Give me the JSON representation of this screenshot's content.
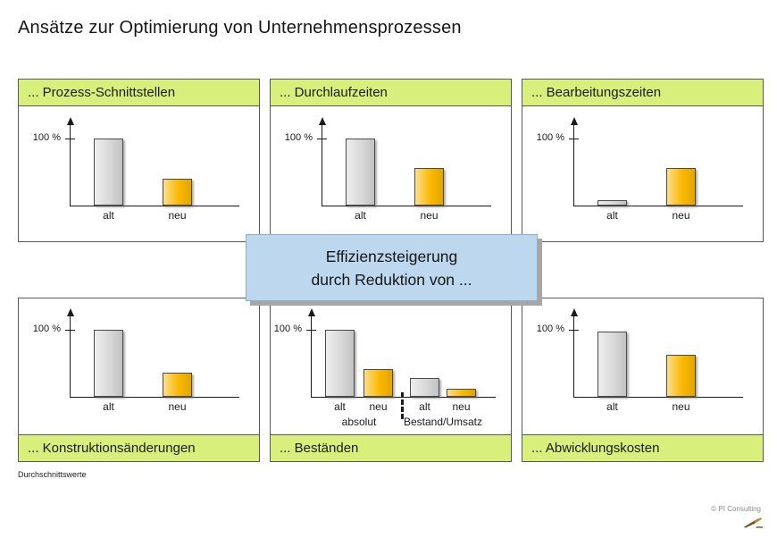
{
  "title": "Ansätze zur Optimierung von Unternehmensprozessen",
  "center_box": {
    "line1": "Effizienzsteigerung",
    "line2": "durch Reduktion von ..."
  },
  "footnote": "Durchschnittswerte",
  "copyright": "© PI Consulting",
  "colors": {
    "header_bg": "#d8ef7c",
    "panel_border": "#595959",
    "alt_bar": "#d8d8d8",
    "neu_bar": "#fbb800",
    "box_bg": "#bdd7ee",
    "axis_color": "#1a1a1a"
  },
  "chart_data": [
    {
      "type": "bar",
      "title": "... Prozess-Schnittstellen",
      "header_position": "top",
      "categories": [
        "alt",
        "neu"
      ],
      "values": [
        100,
        40
      ],
      "y_tick_label": "100 %",
      "ylim": [
        0,
        115
      ],
      "grid": false,
      "legend": false
    },
    {
      "type": "bar",
      "title": "... Durchlaufzeiten",
      "header_position": "top",
      "categories": [
        "alt",
        "neu"
      ],
      "values": [
        100,
        56
      ],
      "y_tick_label": "100 %",
      "ylim": [
        0,
        115
      ],
      "grid": false,
      "legend": false
    },
    {
      "type": "bar",
      "title": "... Bearbeitungszeiten",
      "header_position": "top",
      "categories": [
        "alt",
        "neu"
      ],
      "values": [
        8,
        56
      ],
      "y_tick_label": "100 %",
      "ylim": [
        0,
        115
      ],
      "grid": false,
      "legend": false
    },
    {
      "type": "bar",
      "title": "... Konstruktionsänderungen",
      "header_position": "bottom",
      "categories": [
        "alt",
        "neu"
      ],
      "values": [
        100,
        36
      ],
      "y_tick_label": "100 %",
      "ylim": [
        0,
        115
      ],
      "grid": false,
      "legend": false
    },
    {
      "type": "bar",
      "title": "... Beständen",
      "header_position": "bottom",
      "categories": [
        "alt",
        "neu",
        "alt",
        "neu"
      ],
      "values": [
        100,
        41,
        28,
        12
      ],
      "groups": [
        {
          "label": "absolut",
          "span": [
            0,
            1
          ]
        },
        {
          "label": "Bestand/Umsatz",
          "span": [
            2,
            3
          ]
        }
      ],
      "y_tick_label": "100 %",
      "ylim": [
        0,
        115
      ],
      "grid": false,
      "legend": false
    },
    {
      "type": "bar",
      "title": "... Abwicklungskosten",
      "header_position": "bottom",
      "categories": [
        "alt",
        "neu"
      ],
      "values": [
        97,
        63
      ],
      "y_tick_label": "100 %",
      "ylim": [
        0,
        115
      ],
      "grid": false,
      "legend": false
    }
  ]
}
